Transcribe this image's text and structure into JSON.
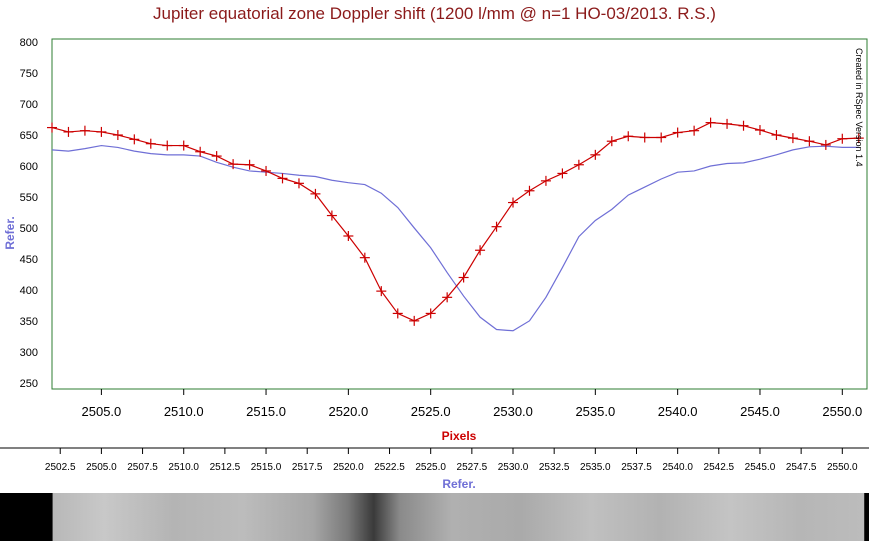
{
  "title": "Jupiter equatorial zone Doppler shift (1200 l/mm @ n=1 HO-03/2013. R.S.)",
  "side_note": "Created in RSpec Version 1.4",
  "colors": {
    "title": "#8b1a1a",
    "frame": "#2e7d32",
    "series_red": "#cc0000",
    "series_ref": "#6f6fd6",
    "ylabel": "#6f6fd6",
    "xlabel": "#cc0000",
    "sub_xlabel": "#6f6fd6"
  },
  "chart_data": {
    "type": "line",
    "title": "Jupiter equatorial zone Doppler shift (1200 l/mm @ n=1 HO-03/2013. R.S.)",
    "xlabel": "Pixels",
    "ylabel": "Refer.",
    "secondary_xlabel": "Refer.",
    "xlim": [
      2502,
      2551.5
    ],
    "ylim": [
      240,
      805
    ],
    "grid": false,
    "y_ticks": [
      800,
      750,
      700,
      650,
      600,
      550,
      500,
      450,
      400,
      350,
      300,
      250
    ],
    "x_ticks_main": [
      "2505.0",
      "2510.0",
      "2515.0",
      "2520.0",
      "2525.0",
      "2530.0",
      "2535.0",
      "2540.0",
      "2545.0",
      "2550.0"
    ],
    "x_ticks_secondary": [
      "2502.5",
      "2505.0",
      "2507.5",
      "2510.0",
      "2512.5",
      "2515.0",
      "2517.5",
      "2520.0",
      "2522.5",
      "2525.0",
      "2527.5",
      "2530.0",
      "2532.5",
      "2535.0",
      "2537.5",
      "2540.0",
      "2542.5",
      "2545.0",
      "2547.5",
      "2550.0"
    ],
    "series": [
      {
        "style": "red-crosses",
        "x": [
          2502,
          2503,
          2504,
          2505,
          2506,
          2507,
          2508,
          2509,
          2510,
          2511,
          2512,
          2513,
          2514,
          2515,
          2516,
          2517,
          2518,
          2519,
          2520,
          2521,
          2522,
          2523,
          2524,
          2525,
          2526,
          2527,
          2528,
          2529,
          2530,
          2531,
          2532,
          2533,
          2534,
          2535,
          2536,
          2537,
          2538,
          2539,
          2540,
          2541,
          2542,
          2543,
          2544,
          2545,
          2546,
          2547,
          2548,
          2549,
          2550,
          2551
        ],
        "values": [
          662,
          655,
          657,
          655,
          650,
          643,
          636,
          633,
          633,
          623,
          616,
          603,
          602,
          592,
          580,
          572,
          555,
          520,
          487,
          452,
          398,
          362,
          350,
          362,
          388,
          420,
          464,
          502,
          541,
          560,
          576,
          588,
          602,
          618,
          640,
          648,
          646,
          646,
          654,
          657,
          670,
          668,
          665,
          658,
          650,
          645,
          640,
          634,
          644,
          645
        ]
      },
      {
        "style": "blue-line",
        "x": [
          2502,
          2503,
          2504,
          2505,
          2506,
          2507,
          2508,
          2509,
          2510,
          2511,
          2512,
          2513,
          2514,
          2515,
          2516,
          2517,
          2518,
          2519,
          2520,
          2521,
          2522,
          2523,
          2524,
          2525,
          2526,
          2527,
          2528,
          2529,
          2530,
          2531,
          2532,
          2533,
          2534,
          2535,
          2536,
          2537,
          2538,
          2539,
          2540,
          2541,
          2542,
          2543,
          2544,
          2545,
          2546,
          2547,
          2548,
          2549,
          2550,
          2551
        ],
        "values": [
          626,
          624,
          628,
          633,
          630,
          624,
          620,
          618,
          618,
          616,
          606,
          598,
          592,
          590,
          588,
          585,
          583,
          577,
          573,
          570,
          556,
          533,
          500,
          468,
          428,
          390,
          356,
          336,
          334,
          350,
          388,
          436,
          486,
          512,
          530,
          553,
          566,
          579,
          590,
          592,
          600,
          604,
          605,
          611,
          618,
          626,
          631,
          632,
          630,
          630
        ]
      }
    ]
  }
}
